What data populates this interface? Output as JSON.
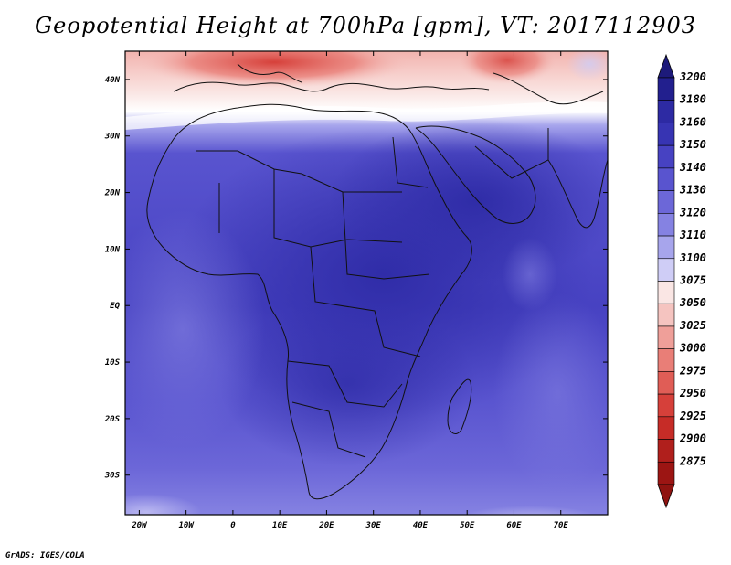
{
  "title": "Geopotential Height at 700hPa [gpm], VT: 2017112903",
  "credit": "GrADS: IGES/COLA",
  "map": {
    "lon_range": [
      -23,
      80
    ],
    "lat_range": [
      -37,
      45
    ],
    "lon_ticks": [
      {
        "value": -20,
        "label": "20W"
      },
      {
        "value": -10,
        "label": "10W"
      },
      {
        "value": 0,
        "label": "0"
      },
      {
        "value": 10,
        "label": "10E"
      },
      {
        "value": 20,
        "label": "20E"
      },
      {
        "value": 30,
        "label": "30E"
      },
      {
        "value": 40,
        "label": "40E"
      },
      {
        "value": 50,
        "label": "50E"
      },
      {
        "value": 60,
        "label": "60E"
      },
      {
        "value": 70,
        "label": "70E"
      }
    ],
    "lat_ticks": [
      {
        "value": 40,
        "label": "40N"
      },
      {
        "value": 30,
        "label": "30N"
      },
      {
        "value": 20,
        "label": "20N"
      },
      {
        "value": 10,
        "label": "10N"
      },
      {
        "value": 0,
        "label": "EQ"
      },
      {
        "value": -10,
        "label": "10S"
      },
      {
        "value": -20,
        "label": "20S"
      },
      {
        "value": -30,
        "label": "30S"
      }
    ]
  },
  "colorbar": {
    "levels": [
      {
        "label": "3200",
        "color": "#221f8e"
      },
      {
        "label": "3180",
        "color": "#2d2aa3"
      },
      {
        "label": "3160",
        "color": "#3734b3"
      },
      {
        "label": "3150",
        "color": "#4742c2"
      },
      {
        "label": "3140",
        "color": "#5954cf"
      },
      {
        "label": "3130",
        "color": "#6c67d8"
      },
      {
        "label": "3120",
        "color": "#8582e2"
      },
      {
        "label": "3110",
        "color": "#a7a5ec"
      },
      {
        "label": "3100",
        "color": "#cfcdf6"
      },
      {
        "label": "3075",
        "color": "#fae6e4"
      },
      {
        "label": "3050",
        "color": "#f5c4c0"
      },
      {
        "label": "3025",
        "color": "#ef9f99"
      },
      {
        "label": "3000",
        "color": "#e97e77"
      },
      {
        "label": "2975",
        "color": "#e05d56"
      },
      {
        "label": "2950",
        "color": "#d6403a"
      },
      {
        "label": "2925",
        "color": "#c62c27"
      },
      {
        "label": "2900",
        "color": "#b01f1c"
      },
      {
        "label": "2875",
        "color": "#9c1513"
      }
    ],
    "top_arrow_color": "#1d1a7a",
    "bottom_arrow_color": "#8f1310"
  }
}
